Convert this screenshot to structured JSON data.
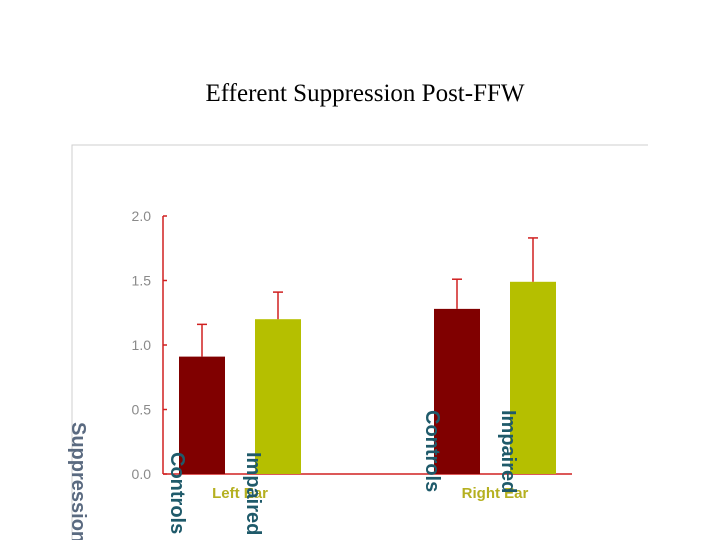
{
  "chart_data": {
    "type": "bar",
    "title": "Efferent Suppression Post-FFW",
    "y_label": "Suppression",
    "categories": [
      "Left Ear",
      "Right Ear"
    ],
    "series": [
      {
        "name": "Controls",
        "color": "#800000",
        "values": [
          0.91,
          1.28
        ],
        "errors": [
          0.25,
          0.23
        ]
      },
      {
        "name": "Impaired",
        "color": "#b5bf00",
        "values": [
          1.2,
          1.49
        ],
        "errors": [
          0.21,
          0.34
        ]
      }
    ],
    "error_color": "#d02020",
    "axis_color": "#d02020",
    "ylim": [
      0,
      2
    ],
    "yticks": [
      {
        "value": 0,
        "label": "0.0"
      },
      {
        "value": 0.5,
        "label": "0.5"
      },
      {
        "value": 1,
        "label": "1.0"
      },
      {
        "value": 1.5,
        "label": "1.5"
      },
      {
        "value": 2,
        "label": "2.0"
      }
    ]
  }
}
